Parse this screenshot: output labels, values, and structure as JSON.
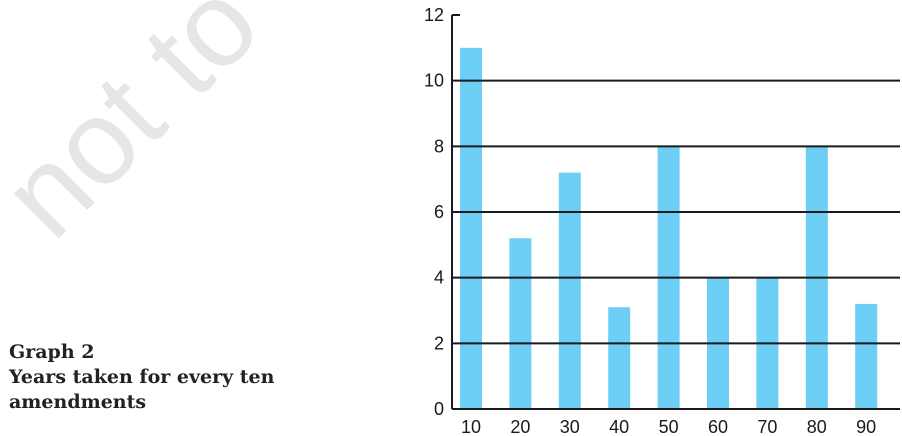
{
  "watermark": "not to",
  "caption": {
    "label": "Graph 2",
    "title_line1": "Years taken for every ten",
    "title_line2": "amendments"
  },
  "colors": {
    "bar": "#6dcff6",
    "axis": "#1a1a1a"
  },
  "chart_data": {
    "type": "bar",
    "title": "Years taken for every ten amendments",
    "xlabel": "",
    "ylabel": "",
    "categories": [
      "10",
      "20",
      "30",
      "40",
      "50",
      "60",
      "70",
      "80",
      "90"
    ],
    "values": [
      11,
      5.2,
      7.2,
      3.1,
      8,
      4,
      4,
      8,
      3.2
    ],
    "ylim": [
      0,
      12
    ],
    "yticks": [
      0,
      2,
      4,
      6,
      8,
      10,
      12
    ],
    "grid": true
  }
}
